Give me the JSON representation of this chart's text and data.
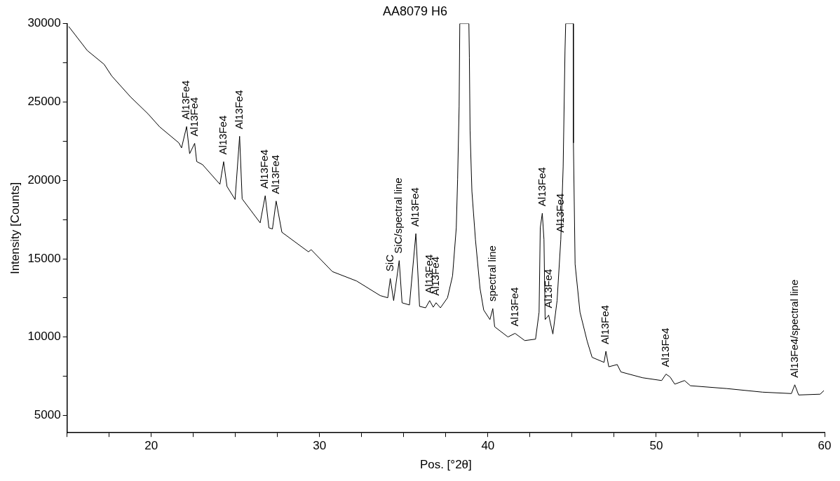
{
  "chart_data": {
    "type": "line",
    "title": "AA8079 H6",
    "xlabel": "Pos. [°2θ]",
    "ylabel": "Intensity [Counts]",
    "color": "#000000",
    "x": [
      15.1,
      16.2,
      17.2,
      17.65,
      18.77,
      19.8,
      20.5,
      21.64,
      21.8,
      22.1,
      22.28,
      22.58,
      22.7,
      23.05,
      24.08,
      24.3,
      24.5,
      24.98,
      25.25,
      25.4,
      26.47,
      26.77,
      26.99,
      27.2,
      27.42,
      27.76,
      29.34,
      29.5,
      30.76,
      32.2,
      33.6,
      34.05,
      34.2,
      34.4,
      34.73,
      34.9,
      35.34,
      35.72,
      35.94,
      36.3,
      36.54,
      36.75,
      36.92,
      37.18,
      37.6,
      37.9,
      38.12,
      38.2,
      38.29,
      38.33,
      38.87,
      38.9,
      38.94,
      39.05,
      39.26,
      39.53,
      39.75,
      40.12,
      40.29,
      40.4,
      41.19,
      41.61,
      42.19,
      42.83,
      43.04,
      43.11,
      43.23,
      43.33,
      43.4,
      43.61,
      43.86,
      44.11,
      44.33,
      44.47,
      44.58,
      44.62,
      45.07,
      45.08,
      45.18,
      45.47,
      45.9,
      46.19,
      46.9,
      47.01,
      47.18,
      47.68,
      47.9,
      49.18,
      50.32,
      50.58,
      50.82,
      51.1,
      51.68,
      52.03,
      54.18,
      56.32,
      58.03,
      58.23,
      58.46,
      59.74,
      59.96
    ],
    "values": [
      29810,
      28280,
      27400,
      26660,
      25320,
      24250,
      23410,
      22390,
      22070,
      23430,
      21700,
      22360,
      21200,
      21000,
      19750,
      21190,
      19610,
      18780,
      22810,
      18820,
      17290,
      19020,
      16970,
      16900,
      18680,
      16690,
      15440,
      15580,
      14180,
      13580,
      12650,
      12510,
      13740,
      12330,
      14880,
      12190,
      12050,
      16600,
      11960,
      11870,
      12330,
      11910,
      12190,
      11870,
      12510,
      13910,
      16970,
      20070,
      24710,
      30000,
      30000,
      27820,
      23180,
      19290,
      16220,
      13120,
      11730,
      11120,
      11820,
      10660,
      10010,
      10240,
      9780,
      9870,
      11590,
      16970,
      17900,
      16220,
      11120,
      11400,
      10200,
      12330,
      16220,
      20860,
      28280,
      30000,
      30000,
      22390,
      14650,
      11590,
      9730,
      8710,
      8390,
      9100,
      8110,
      8250,
      7780,
      7410,
      7230,
      7640,
      7460,
      7000,
      7230,
      6900,
      6720,
      6490,
      6400,
      6960,
      6310,
      6360,
      6590
    ],
    "xlim": [
      15,
      60
    ],
    "xticks": [
      {
        "value": 15,
        "label": null
      },
      {
        "value": 17.5,
        "label": null
      },
      20,
      {
        "value": 22.5,
        "label": null
      },
      {
        "value": 25,
        "label": null
      },
      {
        "value": 27.5,
        "label": null
      },
      30,
      {
        "value": 32.5,
        "label": null
      },
      {
        "value": 35,
        "label": null
      },
      {
        "value": 37.5,
        "label": null
      },
      40,
      {
        "value": 42.5,
        "label": null
      },
      {
        "value": 45,
        "label": null
      },
      {
        "value": 47.5,
        "label": null
      },
      50,
      {
        "value": 52.5,
        "label": null
      },
      {
        "value": 55,
        "label": null
      },
      {
        "value": 57.5,
        "label": null
      },
      60
    ],
    "ylim": [
      3900,
      30000
    ],
    "yticks": [
      5000,
      {
        "value": 7500,
        "label": null
      },
      10000,
      {
        "value": 12500,
        "label": null
      },
      15000,
      {
        "value": 17500,
        "label": null
      },
      20000,
      {
        "value": 22500,
        "label": null
      },
      25000,
      {
        "value": 27500,
        "label": null
      },
      30000
    ],
    "annotations": [
      {
        "text": "Al13Fe4",
        "x": 22.1,
        "y": 23430
      },
      {
        "text": "Al13Fe4",
        "x": 22.58,
        "y": 22360
      },
      {
        "text": "Al13Fe4",
        "x": 24.3,
        "y": 21190
      },
      {
        "text": "Al13Fe4",
        "x": 25.25,
        "y": 22810
      },
      {
        "text": "Al13Fe4",
        "x": 26.77,
        "y": 19020
      },
      {
        "text": "Al13Fe4",
        "x": 27.42,
        "y": 18680
      },
      {
        "text": "SiC",
        "x": 34.2,
        "y": 13740
      },
      {
        "text": "SiC/spectral line",
        "x": 34.73,
        "y": 14880
      },
      {
        "text": "Al13Fe4",
        "x": 35.72,
        "y": 16600
      },
      {
        "text": "Al13Fe4",
        "x": 36.54,
        "y": 12330
      },
      {
        "text": "Al13Fe4",
        "x": 36.92,
        "y": 12190
      },
      {
        "text": "spectral line",
        "x": 40.29,
        "y": 11820
      },
      {
        "text": "Al13Fe4",
        "x": 41.61,
        "y": 10240
      },
      {
        "text": "Al13Fe4",
        "x": 43.23,
        "y": 17900
      },
      {
        "text": "Al13Fe4",
        "x": 43.61,
        "y": 11400
      },
      {
        "text": "Al13Fe4",
        "x": 44.33,
        "y": 16220
      },
      {
        "text": "Al13Fe4",
        "x": 47.01,
        "y": 9100
      },
      {
        "text": "Al13Fe4",
        "x": 50.58,
        "y": 7640
      },
      {
        "text": "Al13Fe4/spectral line",
        "x": 58.23,
        "y": 6960
      }
    ]
  }
}
